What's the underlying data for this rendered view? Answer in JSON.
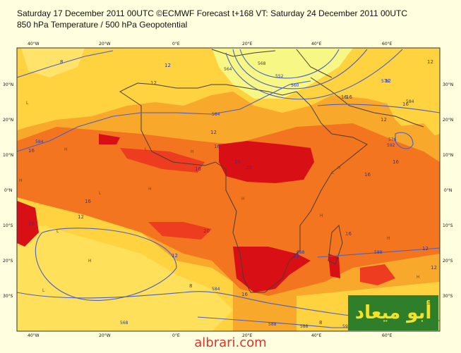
{
  "header": {
    "title_line1": "Saturday 17 December 2011 00UTC ©ECMWF Forecast t+168 VT: Saturday 24 December 2011 00UTC",
    "title_line2": "850 hPa Temperature / 500 hPa Geopotential"
  },
  "map": {
    "lon_labels_top": [
      "40°W",
      "20°W",
      "0°E",
      "20°E",
      "40°E",
      "60°E"
    ],
    "lon_labels_bottom": [
      "40°W",
      "20°W",
      "0°E",
      "20°E",
      "40°E",
      "60°E"
    ],
    "lat_labels_left": [
      "30°N",
      "20°N",
      "10°N",
      "0°N",
      "10°S",
      "20°S",
      "30°S"
    ],
    "lat_labels_right": [
      "30°N",
      "20°N",
      "10°N",
      "0°N",
      "10°S",
      "20°S",
      "30°S"
    ],
    "temperature_labels": [
      "8",
      "12",
      "12",
      "12",
      "16",
      "16",
      "12",
      "16",
      "16",
      "16",
      "16",
      "16",
      "12",
      "16",
      "12",
      "12",
      "20",
      "20",
      "16",
      "16",
      "8",
      "12",
      "16",
      "12",
      "12",
      "16",
      "12",
      "8",
      "16"
    ],
    "geopotential_labels": [
      "564",
      "568",
      "552",
      "560",
      "576",
      "584",
      "584",
      "592",
      "588",
      "588",
      "584",
      "588",
      "588",
      "592",
      "584",
      "576",
      "568"
    ],
    "pressure_markers": [
      "L",
      "L",
      "L",
      "L",
      "L",
      "L",
      "H",
      "H",
      "H",
      "H",
      "H",
      "H",
      "H",
      "H",
      "H",
      "H"
    ],
    "colors": {
      "background": "#fff9a0",
      "cold_zone": "#f7f785",
      "mild": "#ffd23f",
      "warm": "#f8a82a",
      "hot": "#f47520",
      "very_hot": "#ee3c20",
      "extreme": "#d80f14",
      "contour": "#4d5fc0",
      "coast": "#4a3d30"
    }
  },
  "watermark": {
    "logo_text": "أبو ميعاد",
    "site_text": "albrari.com"
  }
}
